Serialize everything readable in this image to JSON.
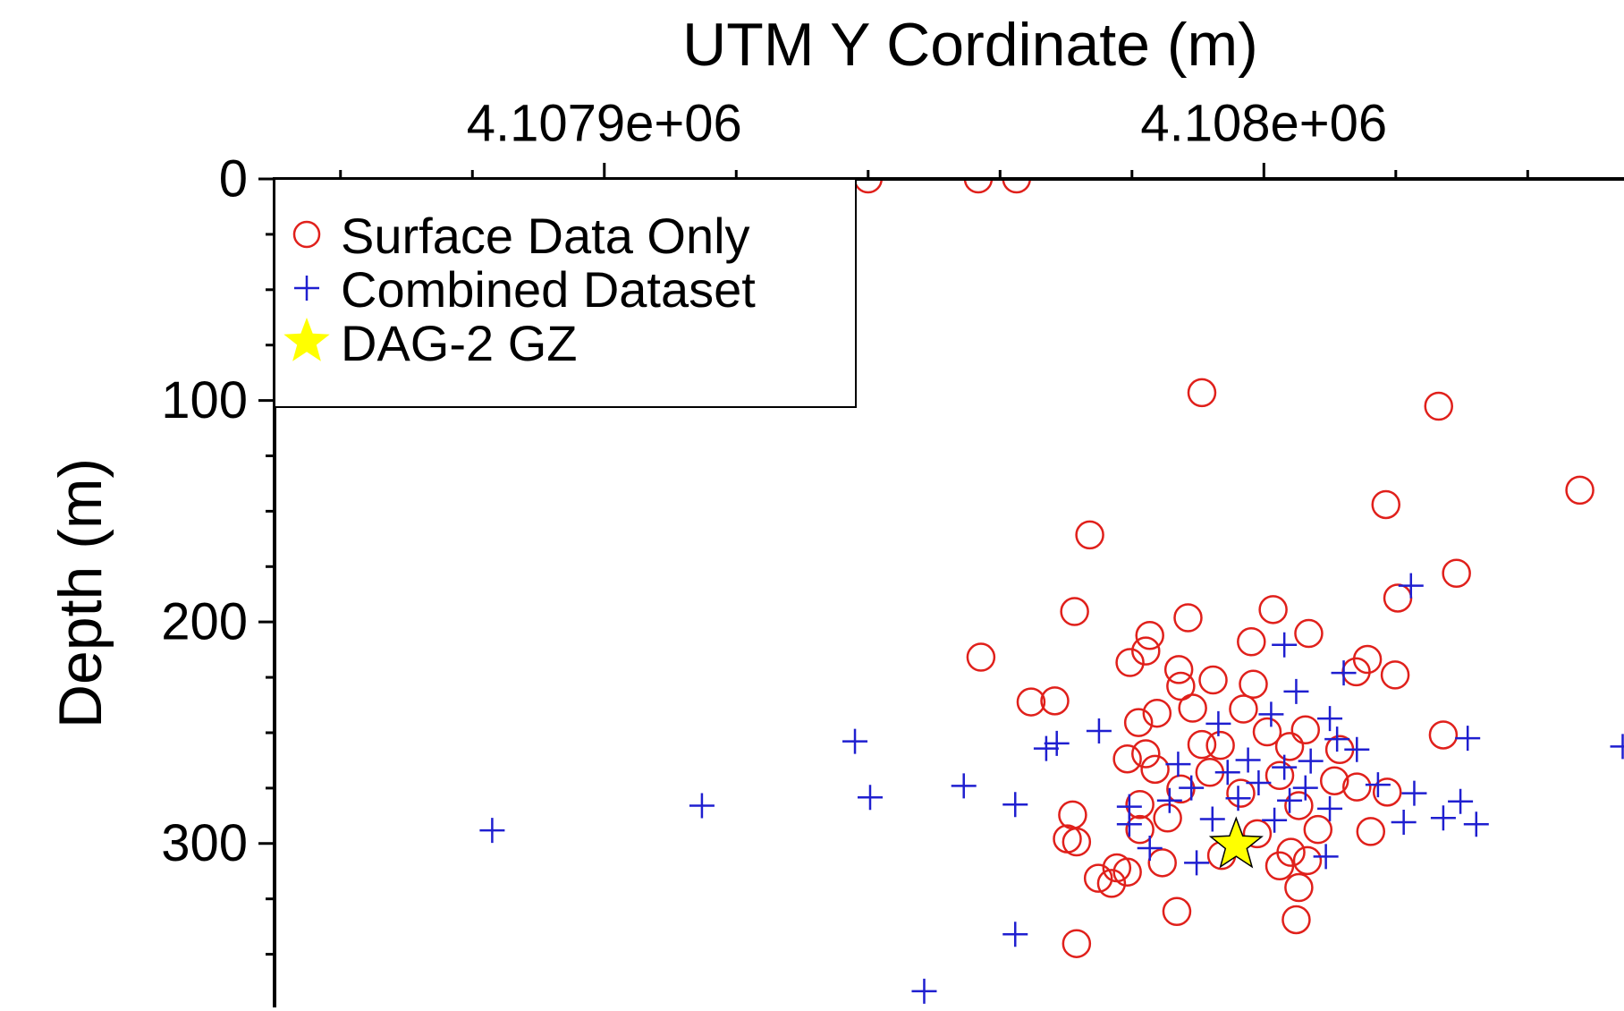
{
  "chart_data": {
    "type": "scatter",
    "title": "UTM Y Cordinate (m)",
    "y_label": "Depth (m)",
    "xlim": [
      4107850,
      4108054.6
    ],
    "ylim": [
      0,
      374
    ],
    "y_inverted": true,
    "xticks": [
      {
        "value": 4107900,
        "label": "4.1079e+06"
      },
      {
        "value": 4108000,
        "label": "4.108e+06"
      }
    ],
    "xminorticks": [
      4107860,
      4107880,
      4107920,
      4107940,
      4107960,
      4107980,
      4108020,
      4108040
    ],
    "yticks": [
      0,
      100,
      200,
      300
    ],
    "yminorticks": [
      25,
      50,
      75,
      125,
      150,
      175,
      225,
      250,
      275,
      325,
      350
    ],
    "legend": "upper left",
    "series": [
      {
        "name": "Surface Data Only",
        "color": "#e0201b",
        "marker": "circle",
        "x": [
          4107940,
          4107956.7,
          4107962.5,
          4107990.6,
          4108026.5,
          4108047.9,
          4108018.5,
          4107973.6,
          4108029.2,
          4108020.3,
          4107971.3,
          4108001.4,
          4107988.5,
          4108006.8,
          4107982.7,
          4107998.1,
          4107957.1,
          4107979.7,
          4107982.1,
          4107987.1,
          4108015.7,
          4108019.9,
          4108014,
          4107992.3,
          4107998.4,
          4107987.4,
          4107964.7,
          4107968.3,
          4107996.9,
          4107983.8,
          4107989.2,
          4108000.5,
          4108006.3,
          4107981,
          4108027.2,
          4108011.5,
          4107990.6,
          4107982.1,
          4107993.4,
          4108003.9,
          4107979.3,
          4107983.5,
          4107991.8,
          4108010.7,
          4108014.1,
          4108018.7,
          4108002.4,
          4107987.4,
          4107996.5,
          4107981.2,
          4107971,
          4108005.3,
          4107985.4,
          4107981.2,
          4108016.2,
          4107970.2,
          4107999,
          4108008.2,
          4107993.6,
          4107971.6,
          4108004.1,
          4107984.6,
          4107977.7,
          4108002.4,
          4107979.3,
          4108006.6,
          4107974.9,
          4107976.9,
          4108005.3,
          4107986.8,
          4108004.9,
          4107971.6
        ],
        "y": [
          0,
          0,
          0,
          96.5,
          102.6,
          140.5,
          147,
          160.7,
          178,
          189.2,
          195.3,
          194.4,
          198.1,
          205.2,
          206.1,
          208.9,
          215.9,
          218.3,
          213.1,
          221.5,
          216.9,
          223.9,
          222.5,
          226.2,
          228.1,
          229,
          236.1,
          235.6,
          239.3,
          241.2,
          238.9,
          249.6,
          248.7,
          245.4,
          251,
          257.6,
          255.3,
          259.5,
          255.7,
          256.2,
          261.8,
          266.5,
          267.9,
          271.7,
          274.5,
          276.8,
          269.3,
          275.4,
          277.3,
          282.4,
          287.1,
          282.9,
          288.5,
          293.7,
          294.6,
          297.9,
          295.6,
          293.7,
          305.4,
          299.3,
          304,
          308.7,
          311,
          310.1,
          312.9,
          307.7,
          315.7,
          318,
          319.9,
          330.7,
          334.4,
          345.2
        ]
      },
      {
        "name": "Combined Dataset",
        "color": "#1f1fd0",
        "marker": "plus",
        "x": [
          4107883,
          4107914.8,
          4107938,
          4107940.3,
          4107954.5,
          4107962.3,
          4107967,
          4107968.6,
          4107975,
          4107962.3,
          4107948.5,
          4108022.3,
          4108003.1,
          4108012.1,
          4108004.9,
          4108001.1,
          4108010,
          4107993.1,
          4108011.1,
          4108014.1,
          4108030.9,
          4108054.4,
          4107987,
          4107997.6,
          4108007.1,
          4108017.3,
          4108022.8,
          4108029.8,
          4107979.6,
          4107989,
          4107999.2,
          4108003.9,
          4108010,
          4108027.2,
          4108021.2,
          4108032.2,
          4107979.6,
          4107992.2,
          4108001.6,
          4107982.7,
          4107989.8,
          4108009.4,
          4107996.1,
          4108006.3,
          4107985.7,
          4107994.5,
          4108003.1
        ],
        "y": [
          294.1,
          282.9,
          253.9,
          279.2,
          274,
          282.4,
          257.1,
          254.8,
          249.2,
          341,
          366.7,
          183.6,
          210.3,
          223,
          231.4,
          241.7,
          243.6,
          245.9,
          252.9,
          257.6,
          252.5,
          256.2,
          264.2,
          262.3,
          262.8,
          273.5,
          277.3,
          281,
          283.4,
          274.9,
          272.6,
          280.6,
          284.3,
          288.5,
          290.4,
          291.3,
          291.3,
          289,
          289.5,
          302.1,
          308.7,
          305.9,
          279.6,
          274.9,
          280.6,
          267.9,
          265.6
        ]
      },
      {
        "name": "DAG-2 GZ",
        "color": "#ffff00",
        "marker": "star",
        "x": [
          4107995.8
        ],
        "y": [
          300.7
        ]
      }
    ]
  }
}
